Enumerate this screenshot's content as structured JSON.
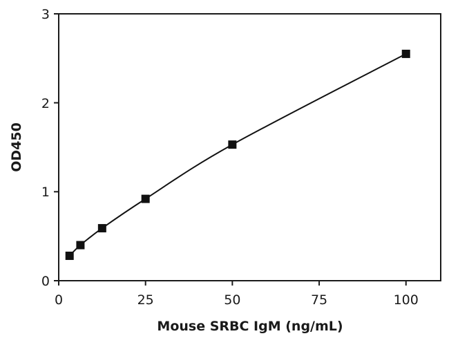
{
  "chart_data": {
    "type": "scatter",
    "title": "",
    "xlabel": "Mouse SRBC IgM (ng/mL)",
    "ylabel": "OD450",
    "xlim": [
      0,
      110
    ],
    "ylim": [
      0,
      3
    ],
    "xticks": [
      "0",
      "25",
      "50",
      "75",
      "100"
    ],
    "yticks": [
      "0",
      "1",
      "2",
      "3"
    ],
    "grid": false,
    "legend": "none",
    "series": [
      {
        "x": [
          3.125,
          6.25,
          12.5,
          25,
          50,
          100
        ],
        "y": [
          0.28,
          0.4,
          0.59,
          0.92,
          1.53,
          2.55
        ],
        "marker": "square",
        "fit_line": true,
        "color": "#111111"
      }
    ]
  }
}
